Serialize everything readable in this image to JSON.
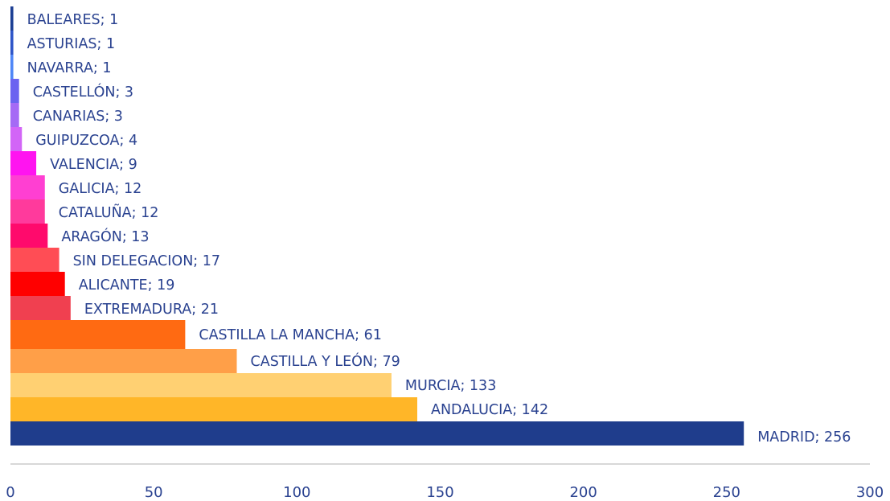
{
  "chart_data": {
    "type": "bar",
    "orientation": "horizontal",
    "title": "",
    "xlabel": "",
    "ylabel": "",
    "xlim": [
      0,
      300
    ],
    "x_ticks": [
      "0",
      "50",
      "100",
      "150",
      "200",
      "250",
      "300"
    ],
    "grid": false,
    "legend": "none",
    "label_color": "#2a4290",
    "axis_color": "#cccccc",
    "bars": [
      {
        "label": "BALEARES; 1",
        "category": "BALEARES",
        "value": 1,
        "color": "#1c3f94"
      },
      {
        "label": "ASTURIAS; 1",
        "category": "ASTURIAS",
        "value": 1,
        "color": "#2e55c8"
      },
      {
        "label": "NAVARRA; 1",
        "category": "NAVARRA",
        "value": 1,
        "color": "#4f86f7"
      },
      {
        "label": "CASTELLÓN; 3",
        "category": "CASTELLÓN",
        "value": 3,
        "color": "#6b63f0"
      },
      {
        "label": "CANARIAS; 3",
        "category": "CANARIAS",
        "value": 3,
        "color": "#a56af5"
      },
      {
        "label": "GUIPUZCOA; 4",
        "category": "GUIPUZCOA",
        "value": 4,
        "color": "#d265f7"
      },
      {
        "label": "VALENCIA; 9",
        "category": "VALENCIA",
        "value": 9,
        "color": "#ff14f0"
      },
      {
        "label": "GALICIA; 12",
        "category": "GALICIA",
        "value": 12,
        "color": "#ff3fd2"
      },
      {
        "label": "CATALUÑA; 12",
        "category": "CATALUÑA",
        "value": 12,
        "color": "#ff3a9c"
      },
      {
        "label": "ARAGÓN; 13",
        "category": "ARAGÓN",
        "value": 13,
        "color": "#ff0a6c"
      },
      {
        "label": "SIN DELEGACION; 17",
        "category": "SIN DELEGACION",
        "value": 17,
        "color": "#ff4d55"
      },
      {
        "label": "ALICANTE; 19",
        "category": "ALICANTE",
        "value": 19,
        "color": "#ff0000"
      },
      {
        "label": "EXTREMADURA; 21",
        "category": "EXTREMADURA",
        "value": 21,
        "color": "#f04050"
      },
      {
        "label": "CASTILLA LA MANCHA; 61",
        "category": "CASTILLA LA MANCHA",
        "value": 61,
        "color": "#ff6a12"
      },
      {
        "label": "CASTILLA Y LEÓN; 79",
        "category": "CASTILLA Y LEÓN",
        "value": 79,
        "color": "#ff9f48"
      },
      {
        "label": "MURCIA; 133",
        "category": "MURCIA",
        "value": 133,
        "color": "#ffd072"
      },
      {
        "label": "ANDALUCIA; 142",
        "category": "ANDALUCIA",
        "value": 142,
        "color": "#ffb628"
      },
      {
        "label": "MADRID; 256",
        "category": "MADRID",
        "value": 256,
        "color": "#1f3d8c"
      }
    ]
  }
}
